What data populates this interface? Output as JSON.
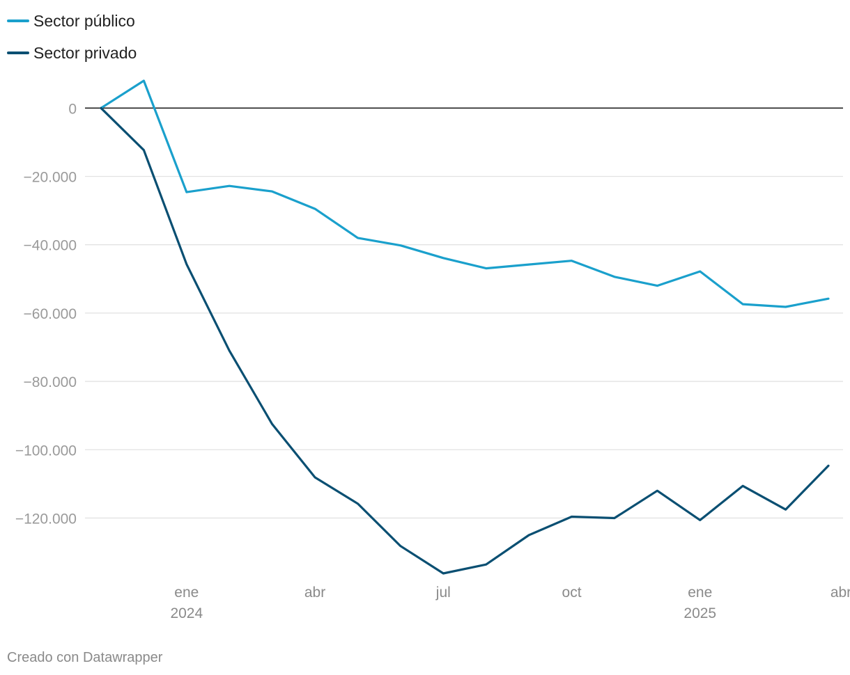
{
  "chart_data": {
    "type": "line",
    "x": [
      "2023-11",
      "2023-12",
      "2024-01",
      "2024-02",
      "2024-03",
      "2024-04",
      "2024-05",
      "2024-06",
      "2024-07",
      "2024-08",
      "2024-09",
      "2024-10",
      "2024-11",
      "2024-12",
      "2025-01",
      "2025-02",
      "2025-03",
      "2025-04"
    ],
    "series": [
      {
        "name": "Sector público",
        "color": "#1aa0cc",
        "values": [
          0,
          8000,
          -24600,
          -22800,
          -24400,
          -29500,
          -38000,
          -40200,
          -43900,
          -46900,
          -45800,
          -44700,
          -49400,
          -52000,
          -47800,
          -57400,
          -58200,
          -55800
        ]
      },
      {
        "name": "Sector privado",
        "color": "#0a4f72",
        "values": [
          0,
          -12300,
          -45700,
          -71000,
          -92500,
          -108100,
          -115800,
          -128200,
          -136200,
          -133600,
          -125000,
          -119600,
          -120000,
          -112000,
          -120600,
          -110600,
          -117500,
          -104700
        ]
      }
    ],
    "ylim": [
      -136200,
      8000
    ],
    "y_ticks": [
      0,
      -20000,
      -40000,
      -60000,
      -80000,
      -100000,
      -120000
    ],
    "y_tick_labels": [
      "0",
      "−20.000",
      "−40.000",
      "−60.000",
      "−80.000",
      "−100.000",
      "−120.000"
    ],
    "x_ticks": [
      {
        "x": "2024-01",
        "label": "ene",
        "sublabel": "2024"
      },
      {
        "x": "2024-04",
        "label": "abr",
        "sublabel": ""
      },
      {
        "x": "2024-07",
        "label": "jul",
        "sublabel": ""
      },
      {
        "x": "2024-10",
        "label": "oct",
        "sublabel": ""
      },
      {
        "x": "2025-01",
        "label": "ene",
        "sublabel": "2025"
      },
      {
        "x": "2025-04",
        "label": "abr",
        "sublabel": ""
      }
    ],
    "grid": true,
    "legend": "top-left",
    "zero_line_color": "#222222",
    "grid_color": "#e2e2e2"
  },
  "footer": {
    "credit": "Creado con Datawrapper"
  }
}
